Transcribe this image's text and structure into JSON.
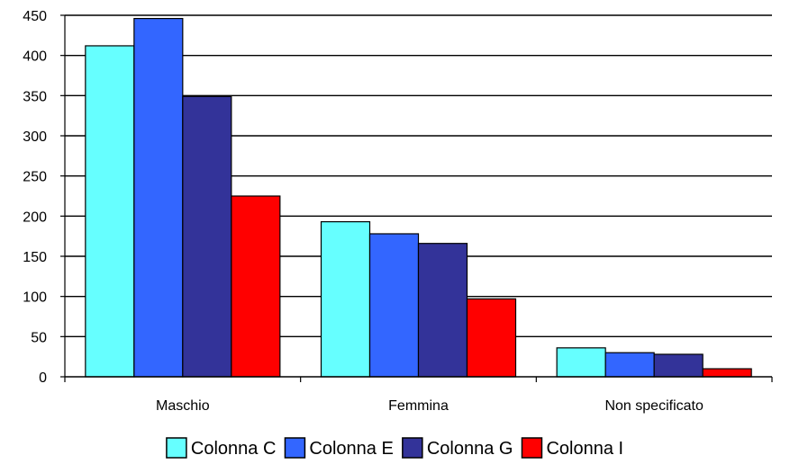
{
  "chart_data": {
    "type": "bar",
    "categories": [
      "Maschio",
      "Femmina",
      "Non specificato"
    ],
    "series": [
      {
        "name": "Colonna C",
        "color": "#66ffff",
        "values": [
          412,
          193,
          36
        ]
      },
      {
        "name": "Colonna E",
        "color": "#3366ff",
        "values": [
          446,
          178,
          30
        ]
      },
      {
        "name": "Colonna G",
        "color": "#333399",
        "values": [
          349,
          166,
          28
        ]
      },
      {
        "name": "Colonna I",
        "color": "#ff0000",
        "values": [
          225,
          97,
          10
        ]
      }
    ],
    "ylim": [
      0,
      450
    ],
    "yticks": [
      0,
      50,
      100,
      150,
      200,
      250,
      300,
      350,
      400,
      450
    ],
    "grid": true,
    "legend_position": "bottom"
  }
}
